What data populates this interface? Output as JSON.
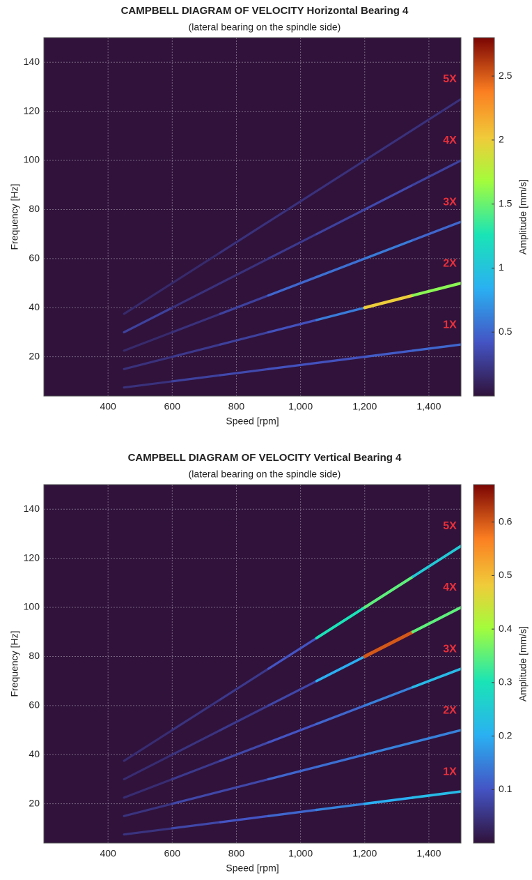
{
  "chart_data": [
    {
      "type": "campbell",
      "title": "CAMPBELL DIAGRAM OF VELOCITY Horizontal Bearing 4",
      "subtitle": "(lateral bearing on the spindle side)",
      "xlabel": "Speed [rpm]",
      "ylabel": "Frequency [Hz]",
      "xlim": [
        200,
        1500
      ],
      "ylim": [
        4,
        150
      ],
      "xticks": [
        400,
        600,
        800,
        {
          "value": 1000,
          "label": "1,000"
        },
        {
          "value": 1200,
          "label": "1,200"
        },
        {
          "value": 1400,
          "label": "1,400"
        }
      ],
      "yticks": [
        20,
        40,
        60,
        80,
        100,
        120,
        140
      ],
      "grid": true,
      "background": "#30123b",
      "colorbar": {
        "label": "Amplitude [mm/s]",
        "clim": [
          0,
          2.8
        ],
        "ticks": [
          0.5,
          1,
          1.5,
          2,
          2.5
        ]
      },
      "series": [
        {
          "name": "1X",
          "x": [
            450,
            600,
            750,
            900,
            1050,
            1200,
            1350,
            1500
          ],
          "y": [
            7.5,
            10,
            12.5,
            15,
            17.5,
            20,
            22.5,
            25
          ],
          "amplitude": [
            0.2,
            0.3,
            0.35,
            0.4,
            0.4,
            0.45,
            0.5,
            0.5
          ]
        },
        {
          "name": "2X",
          "x": [
            450,
            600,
            750,
            900,
            1050,
            1200,
            1350,
            1500
          ],
          "y": [
            15,
            20,
            25,
            30,
            35,
            40,
            45,
            50
          ],
          "amplitude": [
            0.2,
            0.25,
            0.3,
            0.4,
            0.6,
            2.0,
            1.6,
            1.4
          ]
        },
        {
          "name": "3X",
          "x": [
            450,
            600,
            750,
            900,
            1050,
            1200,
            1350,
            1500
          ],
          "y": [
            22.5,
            30,
            37.5,
            45,
            52.5,
            60,
            67.5,
            75
          ],
          "amplitude": [
            0.15,
            0.2,
            0.3,
            0.5,
            0.55,
            0.6,
            0.5,
            0.45
          ]
        },
        {
          "name": "4X",
          "x": [
            450,
            600,
            750,
            900,
            1050,
            1200,
            1350,
            1500
          ],
          "y": [
            30,
            40,
            50,
            60,
            70,
            80,
            90,
            100
          ],
          "amplitude": [
            0.3,
            0.2,
            0.2,
            0.25,
            0.3,
            0.35,
            0.3,
            0.3
          ]
        },
        {
          "name": "5X",
          "x": [
            450,
            600,
            750,
            900,
            1050,
            1200,
            1350,
            1500
          ],
          "y": [
            37.5,
            50,
            62.5,
            75,
            87.5,
            100,
            112.5,
            125
          ],
          "amplitude": [
            0.15,
            0.15,
            0.2,
            0.2,
            0.2,
            0.2,
            0.2,
            0.15
          ]
        }
      ]
    },
    {
      "type": "campbell",
      "title": "CAMPBELL DIAGRAM OF VELOCITY Vertical Bearing 4",
      "subtitle": "(lateral bearing on the spindle side)",
      "xlabel": "Speed [rpm]",
      "ylabel": "Frequency [Hz]",
      "xlim": [
        200,
        1500
      ],
      "ylim": [
        4,
        150
      ],
      "xticks": [
        400,
        600,
        800,
        {
          "value": 1000,
          "label": "1,000"
        },
        {
          "value": 1200,
          "label": "1,200"
        },
        {
          "value": 1400,
          "label": "1,400"
        }
      ],
      "yticks": [
        20,
        40,
        60,
        80,
        100,
        120,
        140
      ],
      "grid": true,
      "background": "#30123b",
      "colorbar": {
        "label": "Amplitude [mm/s]",
        "clim": [
          0,
          0.67
        ],
        "ticks": [
          0.1,
          0.2,
          0.3,
          0.4,
          0.5,
          0.6
        ]
      },
      "series": [
        {
          "name": "1X",
          "x": [
            450,
            600,
            750,
            900,
            1050,
            1200,
            1350,
            1500
          ],
          "y": [
            7.5,
            10,
            12.5,
            15,
            17.5,
            20,
            22.5,
            25
          ],
          "amplitude": [
            0.05,
            0.08,
            0.1,
            0.12,
            0.15,
            0.2,
            0.22,
            0.25
          ]
        },
        {
          "name": "2X",
          "x": [
            450,
            600,
            750,
            900,
            1050,
            1200,
            1350,
            1500
          ],
          "y": [
            15,
            20,
            25,
            30,
            35,
            40,
            45,
            50
          ],
          "amplitude": [
            0.05,
            0.08,
            0.08,
            0.12,
            0.13,
            0.15,
            0.15,
            0.15
          ]
        },
        {
          "name": "3X",
          "x": [
            450,
            600,
            750,
            900,
            1050,
            1200,
            1350,
            1500
          ],
          "y": [
            22.5,
            30,
            37.5,
            45,
            52.5,
            60,
            67.5,
            75
          ],
          "amplitude": [
            0.04,
            0.06,
            0.08,
            0.1,
            0.12,
            0.15,
            0.22,
            0.3
          ]
        },
        {
          "name": "4X",
          "x": [
            450,
            600,
            750,
            900,
            1050,
            1200,
            1350,
            1500
          ],
          "y": [
            30,
            40,
            50,
            60,
            70,
            80,
            90,
            100
          ],
          "amplitude": [
            0.04,
            0.05,
            0.06,
            0.08,
            0.2,
            0.6,
            0.35,
            0.25
          ]
        },
        {
          "name": "5X",
          "x": [
            450,
            600,
            750,
            900,
            1050,
            1200,
            1350,
            1500
          ],
          "y": [
            37.5,
            50,
            62.5,
            75,
            87.5,
            100,
            112.5,
            125
          ],
          "amplitude": [
            0.04,
            0.05,
            0.06,
            0.1,
            0.3,
            0.35,
            0.25,
            0.15
          ]
        }
      ]
    }
  ]
}
